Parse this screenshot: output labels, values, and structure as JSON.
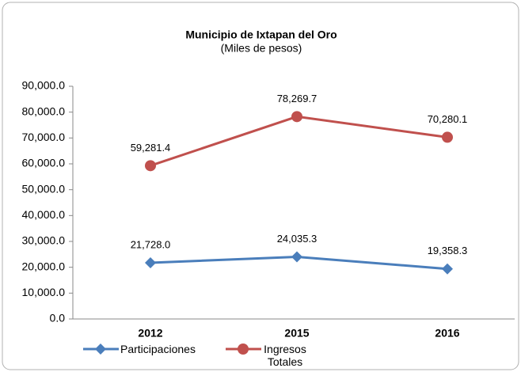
{
  "chart_data": {
    "type": "line",
    "title": "Municipio de Ixtapan del Oro",
    "subtitle": "(Miles de pesos)",
    "categories": [
      "2012",
      "2015",
      "2016"
    ],
    "series": [
      {
        "name": "Participaciones",
        "color": "#4a7ebb",
        "marker": "diamond",
        "values": [
          21728.0,
          24035.3,
          19358.3
        ],
        "value_labels": [
          "21,728.0",
          "24,035.3",
          "19,358.3"
        ]
      },
      {
        "name": "Ingresos Totales",
        "color": "#c0504d",
        "marker": "circle",
        "values": [
          59281.4,
          78269.7,
          70280.1
        ],
        "value_labels": [
          "59,281.4",
          "78,269.7",
          "70,280.1"
        ]
      }
    ],
    "ylim": [
      0,
      90000
    ],
    "yticks": [
      {
        "value": 0,
        "label": "0.0"
      },
      {
        "value": 10000,
        "label": "10,000.0"
      },
      {
        "value": 20000,
        "label": "20,000.0"
      },
      {
        "value": 30000,
        "label": "30,000.0"
      },
      {
        "value": 40000,
        "label": "40,000.0"
      },
      {
        "value": 50000,
        "label": "50,000.0"
      },
      {
        "value": 60000,
        "label": "60,000.0"
      },
      {
        "value": 70000,
        "label": "70,000.0"
      },
      {
        "value": 80000,
        "label": "80,000.0"
      },
      {
        "value": 90000,
        "label": "90,000.0"
      }
    ],
    "grid": false,
    "legend": "bottom"
  }
}
